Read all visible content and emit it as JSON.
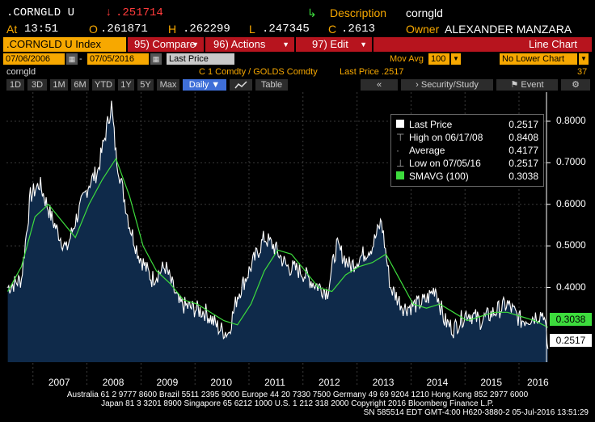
{
  "header": {
    "ticker": ".CORNGLD U",
    "last_arrow": "↓",
    "last": ".251714",
    "desc_label": "Description",
    "desc_value": "corngld",
    "at_label": "At",
    "time": "13:51",
    "o_label": "O",
    "open": ".261871",
    "h_label": "H",
    "high": ".262299",
    "l_label": "L",
    "low": ".247345",
    "c_label": "C",
    "close": ".2613",
    "owner_label": "Owner",
    "owner_value": "ALEXANDER MANZARA"
  },
  "toolbar": {
    "index_label": ".CORNGLD U Index",
    "compare_label": "95) Compare",
    "actions_label": "96) Actions",
    "edit_label": "97) Edit",
    "chart_type": "Line Chart"
  },
  "range": {
    "start_date": "07/06/2006",
    "end_date": "07/05/2016",
    "field": "Last Price",
    "mov_avg_label": "Mov Avg",
    "mov_avg_value": "100",
    "lower_chart": "No Lower Chart"
  },
  "info": {
    "name": "corngld",
    "formula": "C 1 Comdty / GOLDS Comdty",
    "last_price": "Last Price .2517",
    "count": "37"
  },
  "periods": {
    "p1": "1D",
    "p2": "3D",
    "p3": "1M",
    "p4": "6M",
    "p5": "YTD",
    "p6": "1Y",
    "p7": "5Y",
    "p8": "Max",
    "freq": "Daily ▼",
    "table": "Table",
    "security_study": "Security/Study",
    "event": "Event"
  },
  "legend": {
    "last_price_label": "Last Price",
    "last_price_value": "0.2517",
    "high_label": "High on 06/17/08",
    "high_value": "0.8408",
    "average_label": "Average",
    "average_value": "0.4177",
    "low_label": "Low on 07/05/16",
    "low_value": "0.2517",
    "smavg_label": "SMAVG (100)",
    "smavg_value": "0.3038"
  },
  "footer": {
    "line1": "Australia 61 2 9777 8600 Brazil 5511 2395 9000 Europe 44 20 7330 7500 Germany 49 69 9204 1210 Hong Kong 852 2977 6000",
    "line2": "Japan 81 3 3201 8900        Singapore 65 6212 1000        U.S. 1 212 318 2000        Copyright 2016 Bloomberg Finance L.P.",
    "line3": "SN 585514 EDT  GMT-4:00 H620-3880-2 05-Jul-2016 13:51:29"
  },
  "colors": {
    "price_line": "#ffffff",
    "smavg_line": "#3ddc3d",
    "area_fill": "#0f2a4a",
    "accent_orange": "#f7a800",
    "accent_red": "#b7141e"
  },
  "chart_data": {
    "type": "line",
    "x_tick_labels": [
      "2007",
      "2008",
      "2009",
      "2010",
      "2011",
      "2012",
      "2013",
      "2014",
      "2015",
      "2016"
    ],
    "y_tick_labels": [
      "0.4000",
      "0.5000",
      "0.6000",
      "0.7000",
      "0.8000"
    ],
    "ylim": [
      0.22,
      0.87
    ],
    "xlim": [
      "2006-07-06",
      "2016-07-05"
    ],
    "grid": true,
    "legend_position": "top-right",
    "last_value_badges": [
      "0.3038",
      "0.2517"
    ],
    "series": [
      {
        "name": "Last Price",
        "x": [
          "2006-07",
          "2006-10",
          "2006-12",
          "2007-02",
          "2007-05",
          "2007-08",
          "2007-10",
          "2008-01",
          "2008-03",
          "2008-06",
          "2008-07",
          "2008-10",
          "2008-12",
          "2009-03",
          "2009-06",
          "2009-09",
          "2009-12",
          "2010-03",
          "2010-06",
          "2010-08",
          "2010-10",
          "2011-01",
          "2011-04",
          "2011-06",
          "2011-09",
          "2011-12",
          "2012-03",
          "2012-06",
          "2012-08",
          "2012-11",
          "2013-01",
          "2013-04",
          "2013-06",
          "2013-08",
          "2013-11",
          "2014-02",
          "2014-04",
          "2014-06",
          "2014-08",
          "2014-10",
          "2015-01",
          "2015-04",
          "2015-07",
          "2015-10",
          "2016-01",
          "2016-04",
          "2016-06",
          "2016-07"
        ],
        "values": [
          0.4,
          0.42,
          0.62,
          0.65,
          0.56,
          0.49,
          0.56,
          0.65,
          0.68,
          0.84,
          0.72,
          0.55,
          0.48,
          0.42,
          0.45,
          0.36,
          0.35,
          0.34,
          0.3,
          0.29,
          0.38,
          0.45,
          0.52,
          0.5,
          0.45,
          0.44,
          0.41,
          0.39,
          0.5,
          0.45,
          0.47,
          0.5,
          0.56,
          0.4,
          0.35,
          0.36,
          0.37,
          0.4,
          0.32,
          0.3,
          0.34,
          0.32,
          0.34,
          0.36,
          0.32,
          0.33,
          0.34,
          0.2517
        ]
      },
      {
        "name": "SMAVG (100)",
        "x": [
          "2006-07",
          "2006-10",
          "2007-01",
          "2007-04",
          "2007-07",
          "2007-10",
          "2008-01",
          "2008-04",
          "2008-07",
          "2008-10",
          "2009-01",
          "2009-04",
          "2009-07",
          "2009-10",
          "2010-01",
          "2010-04",
          "2010-07",
          "2010-10",
          "2011-01",
          "2011-04",
          "2011-07",
          "2011-10",
          "2012-01",
          "2012-04",
          "2012-07",
          "2012-10",
          "2013-01",
          "2013-04",
          "2013-07",
          "2013-10",
          "2014-01",
          "2014-04",
          "2014-07",
          "2014-10",
          "2015-01",
          "2015-04",
          "2015-07",
          "2015-10",
          "2016-01",
          "2016-04",
          "2016-07"
        ],
        "values": [
          0.39,
          0.45,
          0.57,
          0.6,
          0.56,
          0.52,
          0.6,
          0.66,
          0.71,
          0.62,
          0.5,
          0.44,
          0.41,
          0.37,
          0.36,
          0.34,
          0.32,
          0.31,
          0.36,
          0.44,
          0.49,
          0.48,
          0.44,
          0.4,
          0.39,
          0.43,
          0.45,
          0.46,
          0.48,
          0.42,
          0.36,
          0.35,
          0.36,
          0.34,
          0.32,
          0.33,
          0.34,
          0.34,
          0.33,
          0.32,
          0.3038
        ]
      }
    ]
  }
}
